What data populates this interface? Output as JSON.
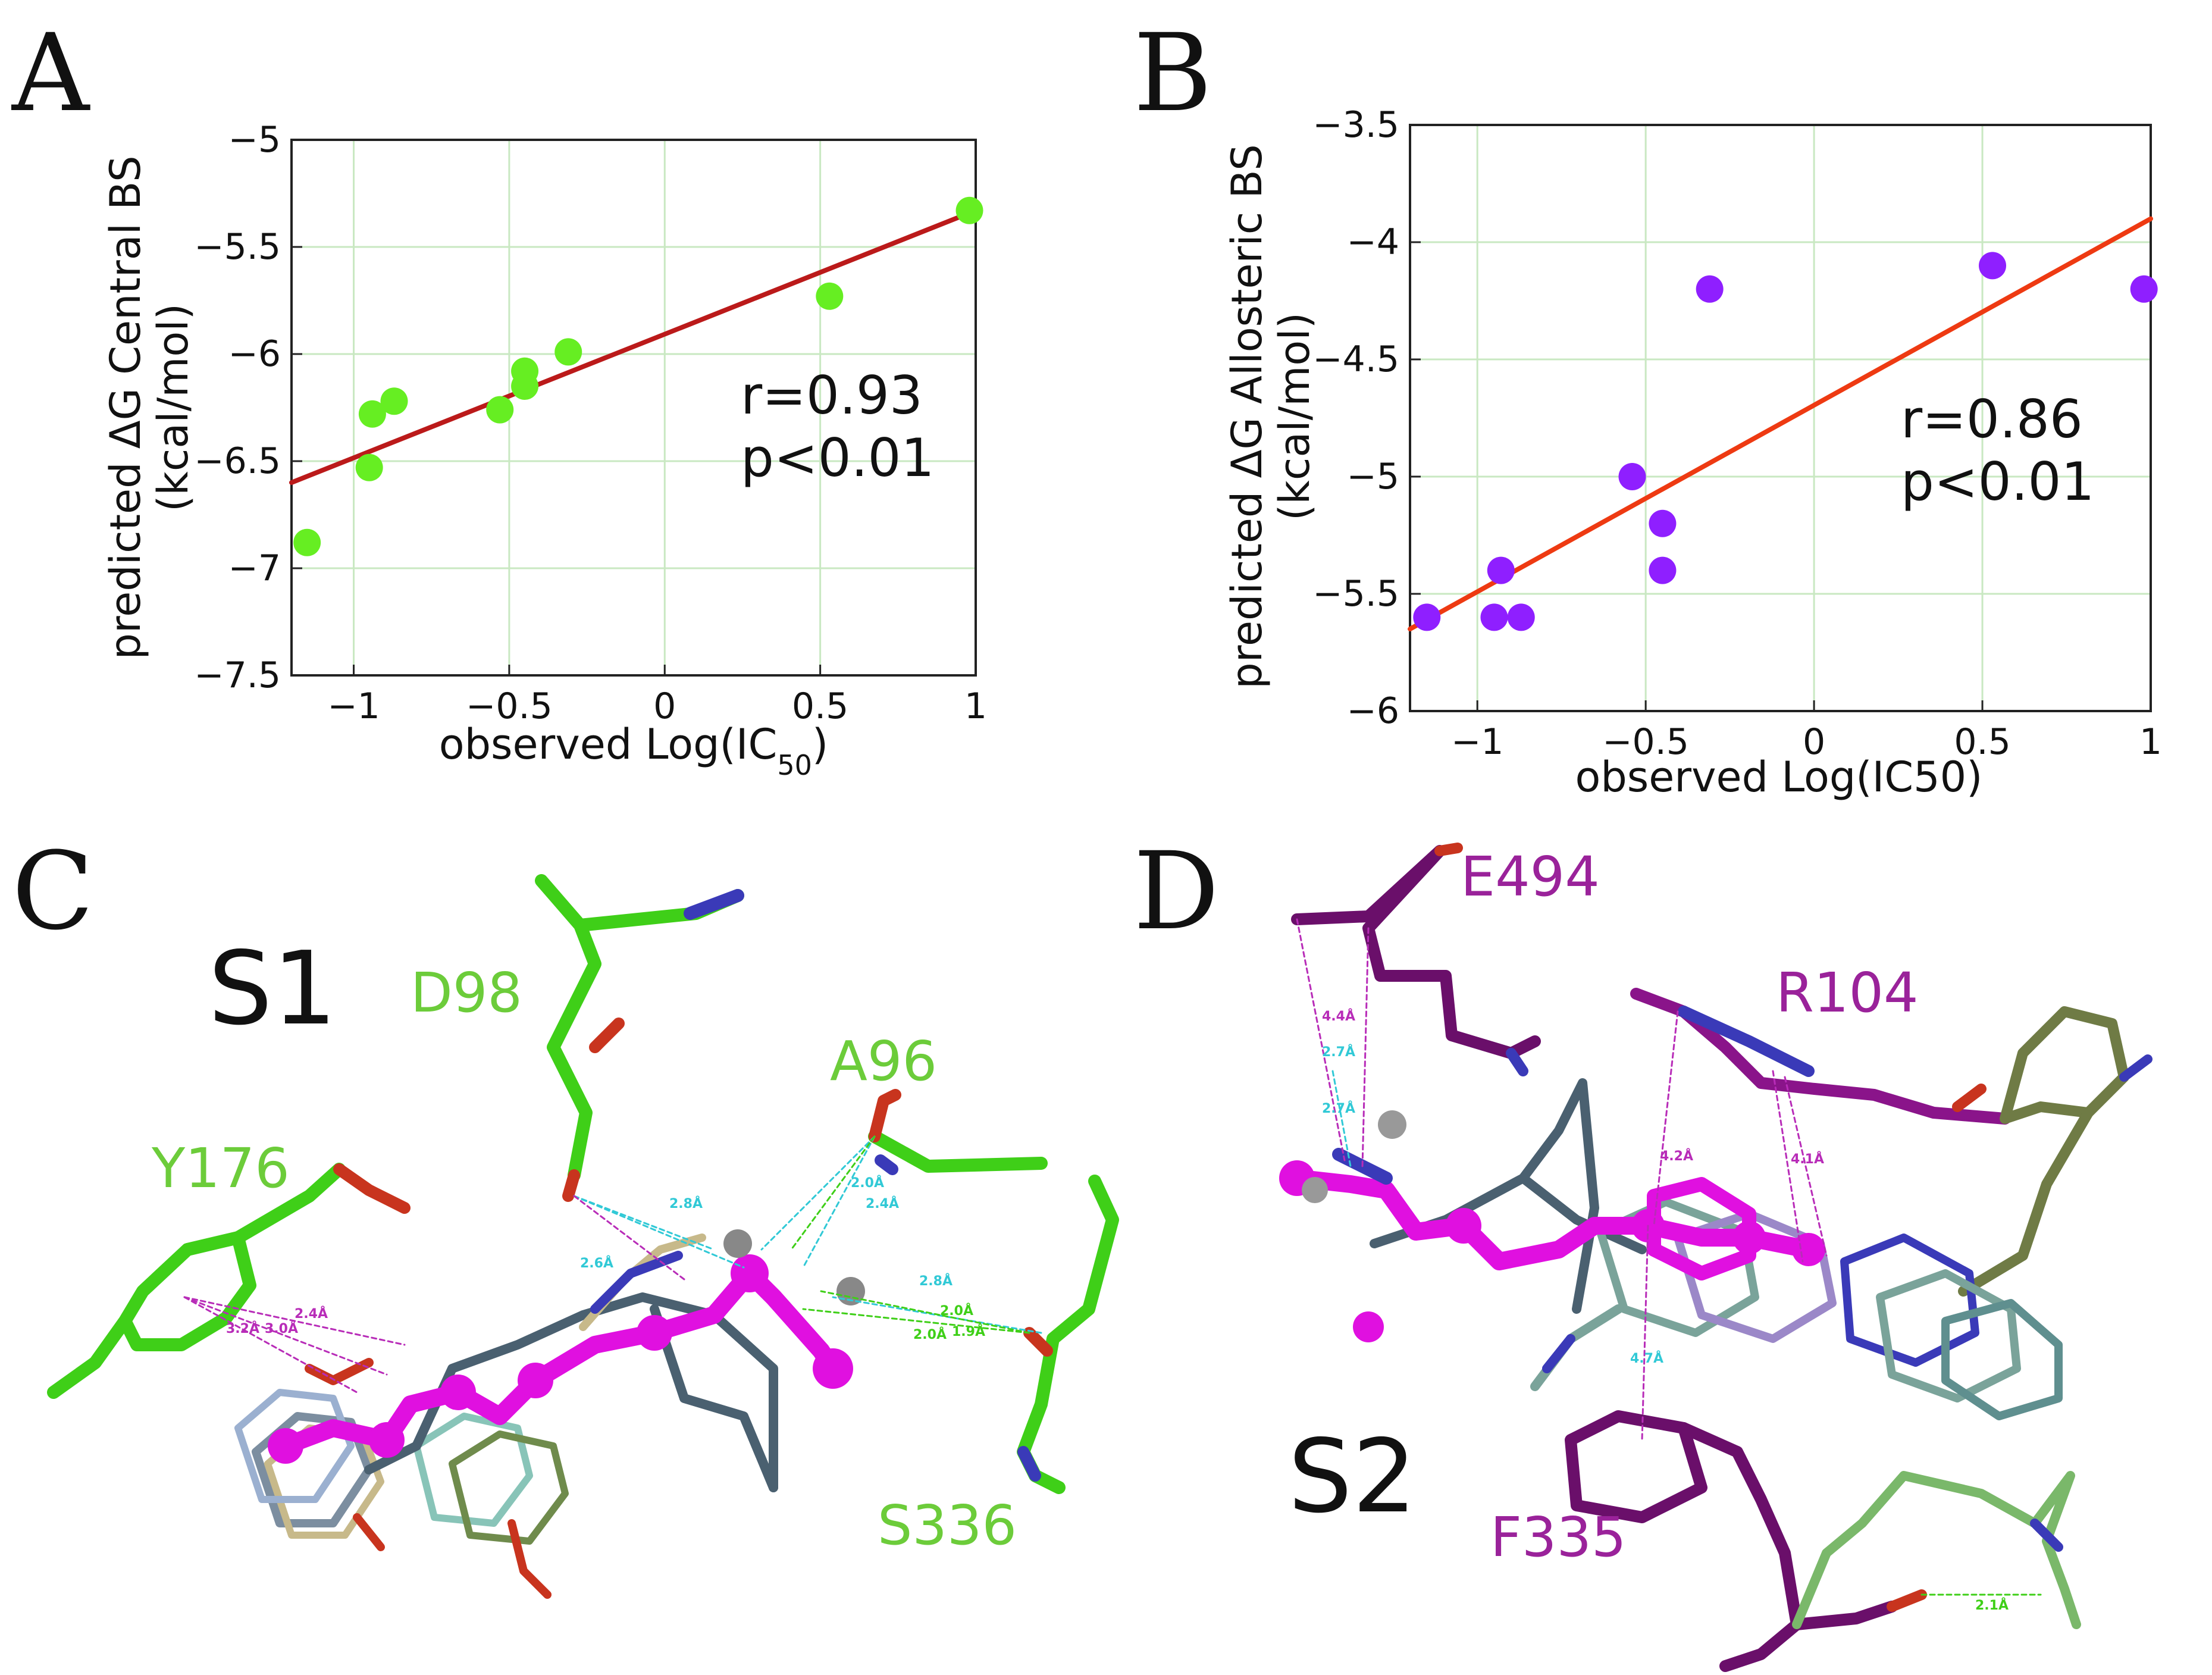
{
  "panels": {
    "A": {
      "label": "A"
    },
    "B": {
      "label": "B"
    },
    "C": {
      "label": "C",
      "site": "S1",
      "residues": [
        "D98",
        "A96",
        "Y176",
        "S336"
      ],
      "distances_cyan": [
        "2.8Å",
        "2.4Å",
        "2.6Å",
        "2.0Å",
        "2.8Å"
      ],
      "distances_green": [
        "2.0Å",
        "1.9Å",
        "2.0Å"
      ],
      "distances_magenta": [
        "3.2Å",
        "3.0Å",
        "2.4Å"
      ]
    },
    "D": {
      "label": "D",
      "site": "S2",
      "residues": [
        "E494",
        "R104",
        "F335"
      ],
      "distances_cyan": [
        "2.7Å",
        "2.7Å",
        "4.7Å"
      ],
      "distances_magenta": [
        "4.4Å",
        "4.2Å",
        "4.1Å"
      ],
      "distances_green": [
        "2.1Å"
      ]
    }
  },
  "chart_data": [
    {
      "id": "A",
      "type": "scatter",
      "xlabel": "observed Log(IC",
      "xlabel_sub": "50",
      "xlabel_end": ")",
      "ylabel_line1": "predicted ΔG Central BS",
      "ylabel_line2": "(kcal/mol)",
      "xlim": [
        -1.2,
        1.0
      ],
      "ylim": [
        -7.5,
        -5.0
      ],
      "xticks": [
        -1,
        -0.5,
        0,
        0.5,
        1
      ],
      "xtick_labels": [
        "−1",
        "−0.5",
        "0",
        "0.5",
        "1"
      ],
      "yticks": [
        -7.5,
        -7,
        -6.5,
        -6,
        -5.5,
        -5
      ],
      "ytick_labels": [
        "−7.5",
        "−7",
        "−6.5",
        "−6",
        "−5.5",
        "−5"
      ],
      "grid": true,
      "point_color": "#66ee22",
      "line_color": "#bb1a1a",
      "points": [
        {
          "x": -1.15,
          "y": -6.88
        },
        {
          "x": -0.95,
          "y": -6.53
        },
        {
          "x": -0.94,
          "y": -6.28
        },
        {
          "x": -0.87,
          "y": -6.22
        },
        {
          "x": -0.53,
          "y": -6.26
        },
        {
          "x": -0.45,
          "y": -6.08
        },
        {
          "x": -0.45,
          "y": -6.15
        },
        {
          "x": -0.31,
          "y": -5.99
        },
        {
          "x": 0.53,
          "y": -5.73
        },
        {
          "x": 0.98,
          "y": -5.33
        }
      ],
      "fit": {
        "x": [
          -1.2,
          1.0
        ],
        "y": [
          -6.6,
          -5.33
        ]
      },
      "annotation": [
        "r=0.93",
        "p<0.01"
      ]
    },
    {
      "id": "B",
      "type": "scatter",
      "xlabel": "observed Log(IC50)",
      "ylabel_line1": "predicted ΔG Allosteric BS",
      "ylabel_line2": "(kcal/mol)",
      "xlim": [
        -1.2,
        1.0
      ],
      "ylim": [
        -6.0,
        -3.5
      ],
      "xticks": [
        -1,
        -0.5,
        0,
        0.5,
        1
      ],
      "xtick_labels": [
        "−1",
        "−0.5",
        "0",
        "0.5",
        "1"
      ],
      "yticks": [
        -6,
        -5.5,
        -5,
        -4.5,
        -4,
        -3.5
      ],
      "ytick_labels": [
        "−6",
        "−5.5",
        "−5",
        "−4.5",
        "−4",
        "−3.5"
      ],
      "grid": true,
      "point_color": "#8f1fff",
      "line_color": "#ee3a12",
      "points": [
        {
          "x": -1.15,
          "y": -5.6
        },
        {
          "x": -0.95,
          "y": -5.6
        },
        {
          "x": -0.93,
          "y": -5.4
        },
        {
          "x": -0.87,
          "y": -5.6
        },
        {
          "x": -0.54,
          "y": -5.0
        },
        {
          "x": -0.45,
          "y": -5.2
        },
        {
          "x": -0.45,
          "y": -5.4
        },
        {
          "x": -0.31,
          "y": -4.2
        },
        {
          "x": 0.53,
          "y": -4.1
        },
        {
          "x": 0.98,
          "y": -4.2
        }
      ],
      "fit": {
        "x": [
          -1.2,
          1.0
        ],
        "y": [
          -5.65,
          -3.9
        ]
      },
      "annotation": [
        "r=0.86",
        "p<0.01"
      ]
    }
  ]
}
